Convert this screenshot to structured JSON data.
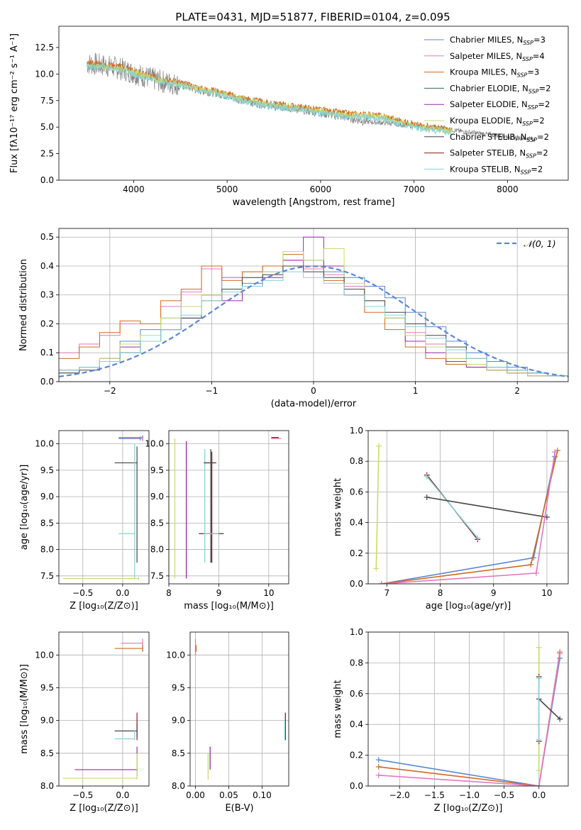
{
  "figure": {
    "title": "PLATE=0431, MJD=51877, FIBERID=0104, z=0.095"
  },
  "models": [
    {
      "name": "Chabrier MILES",
      "nssp": "3",
      "color": "#5a87d6"
    },
    {
      "name": "Salpeter MILES",
      "nssp": "4",
      "color": "#e377c2"
    },
    {
      "name": "Kroupa MILES",
      "nssp": "3",
      "color": "#d2691e"
    },
    {
      "name": "Chabrier ELODIE",
      "nssp": "2",
      "color": "#2f6b4f"
    },
    {
      "name": "Salpeter ELODIE",
      "nssp": "2",
      "color": "#9c27b0"
    },
    {
      "name": "Kroupa ELODIE",
      "nssp": "2",
      "color": "#c6dd6a"
    },
    {
      "name": "Chabrier STELIB",
      "nssp": "2",
      "color": "#444444"
    },
    {
      "name": "Salpeter STELIB",
      "nssp": "2",
      "color": "#8b1a1a"
    },
    {
      "name": "Kroupa STELIB",
      "nssp": "2",
      "color": "#86d3d8"
    }
  ],
  "legend_prefix_sub": "SSP",
  "chart_data": [
    {
      "id": "spectrum",
      "type": "line",
      "xlabel": "wavelength [Angstrom, rest frame]",
      "ylabel": "Flux [fλ10⁻¹⁷ erg cm⁻² s⁻¹ A⁻¹]",
      "xlim": [
        3200,
        8650
      ],
      "ylim": [
        0,
        14.5
      ],
      "xticks": [
        4000,
        5000,
        6000,
        7000,
        8000
      ],
      "yticks": [
        0.0,
        2.5,
        5.0,
        7.5,
        10.0,
        12.5
      ],
      "grid": false,
      "legend": "upper-right",
      "data_color": "#808080",
      "data": {
        "x": [
          3500,
          3700,
          3900,
          4100,
          4300,
          4500,
          4700,
          4900,
          5100,
          5300,
          5500,
          5700,
          5900,
          6100,
          6300,
          6500,
          6700,
          6900,
          7100,
          7300,
          7500,
          7700,
          7900,
          8100,
          8300
        ],
        "y": [
          11.0,
          10.8,
          10.4,
          9.8,
          9.3,
          9.0,
          8.5,
          8.2,
          7.7,
          7.3,
          7.0,
          6.8,
          6.5,
          6.2,
          5.9,
          5.5,
          5.4,
          5.2,
          5.0,
          4.9,
          4.6,
          4.4,
          4.2,
          4.0,
          3.9
        ]
      },
      "model": {
        "x": [
          3500,
          3700,
          3900,
          4100,
          4300,
          4500,
          4700,
          4900,
          5100,
          5300,
          5500,
          5700,
          5900,
          6100,
          6300,
          6500,
          6700,
          6900,
          7100,
          7300,
          7400
        ],
        "y": [
          11.0,
          10.9,
          10.6,
          10.0,
          9.5,
          9.2,
          8.7,
          8.4,
          7.9,
          7.5,
          7.2,
          7.0,
          6.8,
          6.5,
          6.3,
          6.2,
          6.0,
          5.5,
          5.1,
          4.9,
          4.7
        ]
      }
    },
    {
      "id": "residuals",
      "type": "line",
      "xlabel": "(data-model)/error",
      "ylabel": "Normed distribution",
      "xlim": [
        -2.5,
        2.5
      ],
      "ylim": [
        0,
        0.53
      ],
      "xticks": [
        -2,
        -1,
        0,
        1,
        2
      ],
      "yticks": [
        0.0,
        0.1,
        0.2,
        0.3,
        0.4,
        0.5
      ],
      "grid": true,
      "legend": "upper-right",
      "gauss_label": "𝒩(0, 1)",
      "gauss_color": "#5a87d6",
      "bins_x": [
        -2.5,
        -2.3,
        -2.1,
        -1.9,
        -1.7,
        -1.5,
        -1.3,
        -1.1,
        -0.9,
        -0.7,
        -0.5,
        -0.3,
        -0.1,
        0.1,
        0.3,
        0.5,
        0.7,
        0.9,
        1.1,
        1.3,
        1.5,
        1.7,
        1.9,
        2.1,
        2.3,
        2.5
      ],
      "hist": [
        {
          "model": 0,
          "values": [
            0.03,
            0.05,
            0.08,
            0.14,
            0.18,
            0.22,
            0.26,
            0.3,
            0.36,
            0.34,
            0.38,
            0.4,
            0.42,
            0.38,
            0.36,
            0.33,
            0.29,
            0.24,
            0.19,
            0.14,
            0.1,
            0.07,
            0.05,
            0.03,
            0.02
          ]
        },
        {
          "model": 1,
          "values": [
            0.1,
            0.13,
            0.16,
            0.2,
            0.2,
            0.26,
            0.31,
            0.39,
            0.36,
            0.38,
            0.4,
            0.42,
            0.39,
            0.37,
            0.33,
            0.28,
            0.22,
            0.17,
            0.13,
            0.08,
            0.06,
            0.04,
            0.03,
            0.02,
            0.02
          ]
        },
        {
          "model": 2,
          "values": [
            0.08,
            0.12,
            0.17,
            0.21,
            0.2,
            0.28,
            0.32,
            0.4,
            0.35,
            0.38,
            0.4,
            0.44,
            0.4,
            0.35,
            0.3,
            0.24,
            0.18,
            0.12,
            0.08,
            0.06,
            0.05,
            0.04,
            0.03,
            0.02,
            0.02
          ]
        },
        {
          "model": 4,
          "values": [
            0.04,
            0.05,
            0.08,
            0.12,
            0.14,
            0.18,
            0.22,
            0.3,
            0.28,
            0.33,
            0.36,
            0.42,
            0.5,
            0.4,
            0.3,
            0.26,
            0.22,
            0.14,
            0.1,
            0.07,
            0.05,
            0.04,
            0.03,
            0.02,
            0.02
          ]
        },
        {
          "model": 5,
          "values": [
            0.03,
            0.05,
            0.08,
            0.13,
            0.16,
            0.22,
            0.26,
            0.3,
            0.32,
            0.36,
            0.38,
            0.45,
            0.42,
            0.46,
            0.34,
            0.28,
            0.22,
            0.16,
            0.12,
            0.08,
            0.06,
            0.04,
            0.03,
            0.02,
            0.02
          ]
        },
        {
          "model": 6,
          "values": [
            0.03,
            0.04,
            0.07,
            0.1,
            0.14,
            0.18,
            0.22,
            0.28,
            0.32,
            0.36,
            0.37,
            0.4,
            0.38,
            0.36,
            0.32,
            0.28,
            0.24,
            0.2,
            0.16,
            0.12,
            0.08,
            0.05,
            0.04,
            0.03,
            0.02
          ]
        },
        {
          "model": 8,
          "values": [
            0.04,
            0.05,
            0.07,
            0.1,
            0.14,
            0.18,
            0.23,
            0.28,
            0.31,
            0.33,
            0.35,
            0.38,
            0.36,
            0.34,
            0.3,
            0.26,
            0.23,
            0.19,
            0.15,
            0.11,
            0.08,
            0.05,
            0.04,
            0.03,
            0.02
          ]
        }
      ]
    },
    {
      "id": "age-vs-Z",
      "type": "scatter",
      "xlabel": "Z [log₁₀(Z/Z⊙)]",
      "ylabel": "age  [log₁₀(age/yr)]",
      "xlim": [
        -0.8,
        0.33
      ],
      "ylim": [
        7.35,
        10.25
      ],
      "xticks": [
        -0.5,
        0.0
      ],
      "yticks": [
        7.5,
        8.0,
        8.5,
        9.0,
        9.5,
        10.0
      ],
      "grid": true,
      "segments": [
        {
          "model": 2,
          "x1": -0.05,
          "x2": 0.25,
          "y": 10.12,
          "yerr": [
            10.07,
            10.16
          ]
        },
        {
          "model": 1,
          "x1": -0.05,
          "x2": 0.25,
          "y": 10.1,
          "yerr": [
            10.05,
            10.14
          ]
        },
        {
          "model": 6,
          "x1": -0.1,
          "x2": 0.18,
          "y": 9.64,
          "yerr": [
            7.75,
            9.95
          ]
        },
        {
          "model": 8,
          "x1": -0.05,
          "x2": 0.15,
          "y": 8.3,
          "yerr": [
            7.45,
            10.0
          ]
        },
        {
          "model": 5,
          "x1": -0.75,
          "x2": 0.2,
          "y": 7.45,
          "yerr": [
            7.42,
            7.48
          ]
        },
        {
          "model": 0,
          "x1": -0.05,
          "x2": 0.22,
          "y": 10.1,
          "yerr": [
            10.06,
            10.14
          ]
        }
      ]
    },
    {
      "id": "age-vs-mass",
      "type": "scatter",
      "xlabel": "mass [log₁₀(M/M⊙)]",
      "ylabel": "",
      "xlim": [
        8.0,
        10.4
      ],
      "ylim": [
        7.35,
        10.25
      ],
      "xticks": [
        8,
        9,
        10
      ],
      "yticks": [
        7.5,
        8.0,
        8.5,
        9.0,
        9.5,
        10.0
      ],
      "grid": true,
      "vlines": [
        {
          "model": 5,
          "x": 8.12,
          "y1": 7.45,
          "y2": 10.1
        },
        {
          "model": 4,
          "x": 8.35,
          "y1": 7.45,
          "y2": 10.05
        },
        {
          "model": 8,
          "x": 8.72,
          "y1": 7.75,
          "y2": 9.9
        },
        {
          "model": 6,
          "x": 8.84,
          "y1": 7.75,
          "y2": 9.9
        },
        {
          "model": 7,
          "x": 8.86,
          "y1": 7.75,
          "y2": 9.85
        }
      ],
      "hlines": [
        {
          "model": 6,
          "y": 9.64,
          "x1": 8.7,
          "x2": 8.95
        },
        {
          "model": 7,
          "y": 8.3,
          "x1": 8.6,
          "x2": 9.1
        },
        {
          "model": 8,
          "y": 8.3,
          "x1": 8.7,
          "x2": 9.0
        },
        {
          "model": 1,
          "y": 10.1,
          "x1": 10.05,
          "x2": 10.25
        },
        {
          "model": 7,
          "y": 10.12,
          "x1": 10.05,
          "x2": 10.2
        }
      ]
    },
    {
      "id": "mass-weight-vs-age",
      "type": "line",
      "xlabel": "age  [log₁₀(age/yr)]",
      "ylabel": "mass weight",
      "xlim": [
        6.65,
        10.4
      ],
      "ylim": [
        0.0,
        1.0
      ],
      "xticks": [
        7,
        8,
        9,
        10
      ],
      "yticks": [
        0.0,
        0.2,
        0.4,
        0.6,
        0.8,
        1.0
      ],
      "grid": true,
      "series": [
        {
          "model": 5,
          "x": [
            6.8,
            6.85
          ],
          "y": [
            0.1,
            0.9
          ]
        },
        {
          "model": 7,
          "x": [
            7.75,
            8.7
          ],
          "y": [
            0.71,
            0.29
          ]
        },
        {
          "model": 8,
          "x": [
            7.75,
            8.7
          ],
          "y": [
            0.7,
            0.3
          ]
        },
        {
          "model": 6,
          "x": [
            7.75,
            10.0
          ],
          "y": [
            0.565,
            0.435
          ]
        },
        {
          "model": 0,
          "x": [
            6.9,
            9.75,
            10.15
          ],
          "y": [
            0.0,
            0.17,
            0.83
          ]
        },
        {
          "model": 2,
          "x": [
            6.9,
            9.7,
            10.2
          ],
          "y": [
            0.0,
            0.125,
            0.87
          ]
        },
        {
          "model": 1,
          "x": [
            6.9,
            9.8,
            10.15
          ],
          "y": [
            0.0,
            0.07,
            0.86
          ]
        }
      ]
    },
    {
      "id": "mass-vs-Z",
      "type": "scatter",
      "xlabel": "Z [log₁₀(Z/Z⊙)]",
      "ylabel": "mass [log₁₀(M/M⊙)]",
      "xlim": [
        -0.8,
        0.33
      ],
      "ylim": [
        8.0,
        10.35
      ],
      "xticks": [
        -0.5,
        0.0
      ],
      "yticks": [
        8.0,
        8.5,
        9.0,
        9.5,
        10.0
      ],
      "grid": true,
      "segments": [
        {
          "model": 1,
          "x1": -0.02,
          "x2": 0.25,
          "y": 10.18,
          "yerr": [
            10.05,
            10.25
          ]
        },
        {
          "model": 2,
          "x1": -0.1,
          "x2": 0.25,
          "y": 10.1,
          "yerr": [
            10.05,
            10.15
          ]
        },
        {
          "model": 7,
          "x1": -0.1,
          "x2": 0.18,
          "y": 8.84,
          "yerr": [
            8.7,
            9.12
          ]
        },
        {
          "model": 6,
          "x1": -0.1,
          "x2": 0.18,
          "y": 8.84,
          "yerr": [
            8.75,
            8.95
          ]
        },
        {
          "model": 8,
          "x1": -0.1,
          "x2": 0.15,
          "y": 8.72,
          "yerr": [
            8.7,
            8.85
          ]
        },
        {
          "model": 4,
          "x1": -0.6,
          "x2": 0.18,
          "y": 8.25,
          "yerr": [
            8.15,
            8.6
          ]
        },
        {
          "model": 5,
          "x1": -0.75,
          "x2": 0.18,
          "y": 8.12,
          "yerr": [
            8.1,
            8.5
          ]
        }
      ]
    },
    {
      "id": "mass-vs-ebv",
      "type": "scatter",
      "xlabel": "E(B-V)",
      "ylabel": "",
      "xlim": [
        -0.008,
        0.14
      ],
      "ylim": [
        8.0,
        10.35
      ],
      "xticks": [
        0.0,
        0.05,
        0.1
      ],
      "xtick_labels": [
        "0.00",
        "0.05",
        "0.10"
      ],
      "yticks": [
        8.0,
        8.5,
        9.0,
        9.5,
        10.0
      ],
      "grid": true,
      "vlines": [
        {
          "model": 1,
          "x": 0.0,
          "y1": 10.0,
          "y2": 10.25
        },
        {
          "model": 2,
          "x": 0.001,
          "y1": 10.05,
          "y2": 10.15
        },
        {
          "model": 5,
          "x": 0.019,
          "y1": 8.1,
          "y2": 8.5
        },
        {
          "model": 4,
          "x": 0.022,
          "y1": 8.25,
          "y2": 8.6
        },
        {
          "model": 7,
          "x": 0.135,
          "y1": 8.7,
          "y2": 9.12
        },
        {
          "model": 8,
          "x": 0.134,
          "y1": 8.7,
          "y2": 9.0
        }
      ]
    },
    {
      "id": "mass-weight-vs-Z",
      "type": "line",
      "xlabel": "Z [log₁₀(Z/Z⊙)]",
      "ylabel": "mass weight",
      "xlim": [
        -2.45,
        0.42
      ],
      "ylim": [
        0.0,
        1.0
      ],
      "xticks": [
        -2.0,
        -1.5,
        -1.0,
        -0.5,
        0.0
      ],
      "yticks": [
        0.0,
        0.2,
        0.4,
        0.6,
        0.8,
        1.0
      ],
      "grid": true,
      "series": [
        {
          "model": 0,
          "x": [
            -2.3,
            0.0,
            0.3
          ],
          "y": [
            0.17,
            0.0,
            0.83
          ]
        },
        {
          "model": 2,
          "x": [
            -2.3,
            0.0,
            0.3
          ],
          "y": [
            0.125,
            0.0,
            0.87
          ]
        },
        {
          "model": 1,
          "x": [
            -2.3,
            0.0,
            0.3
          ],
          "y": [
            0.07,
            0.0,
            0.86
          ]
        },
        {
          "model": 6,
          "x": [
            0.0,
            0.3
          ],
          "y": [
            0.565,
            0.435
          ]
        },
        {
          "model": 5,
          "x": [
            0.0,
            0.0
          ],
          "y": [
            0.1,
            0.9
          ]
        },
        {
          "model": 7,
          "x": [
            0.0,
            0.0
          ],
          "y": [
            0.29,
            0.71
          ]
        },
        {
          "model": 8,
          "x": [
            0.0,
            0.0
          ],
          "y": [
            0.3,
            0.7
          ]
        }
      ]
    }
  ]
}
